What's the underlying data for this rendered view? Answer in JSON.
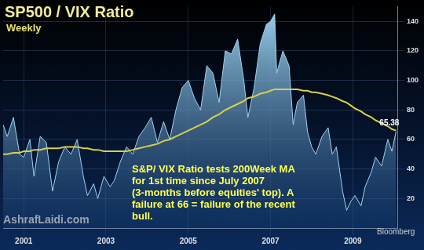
{
  "chart_data": {
    "type": "line",
    "title": "SP500 / VIX Ratio",
    "subtitle": "Weekly",
    "watermark": "AshrafLaidi.com",
    "source": "Bloomberg",
    "annotations": [
      {
        "lines": [
          "S&P/ VIX Ratio tests 200Week MA",
          "for 1st time since July 2007",
          "(3-months before equities' top). A",
          "failure at 66 = failure of the recent",
          "bull."
        ]
      },
      {
        "text": "65.38",
        "x": 2010.05,
        "y": 65.38
      }
    ],
    "x": [
      2000.5,
      2000.6,
      2000.75,
      2000.9,
      2001.0,
      2001.15,
      2001.25,
      2001.4,
      2001.55,
      2001.7,
      2001.85,
      2002.0,
      2002.15,
      2002.3,
      2002.45,
      2002.55,
      2002.7,
      2002.8,
      2002.95,
      2003.1,
      2003.2,
      2003.35,
      2003.5,
      2003.65,
      2003.8,
      2003.95,
      2004.1,
      2004.25,
      2004.4,
      2004.55,
      2004.7,
      2004.85,
      2005.0,
      2005.15,
      2005.3,
      2005.45,
      2005.6,
      2005.75,
      2005.9,
      2006.05,
      2006.2,
      2006.35,
      2006.45,
      2006.6,
      2006.75,
      2006.9,
      2007.0,
      2007.1,
      2007.15,
      2007.3,
      2007.45,
      2007.55,
      2007.65,
      2007.8,
      2007.9,
      2008.0,
      2008.1,
      2008.25,
      2008.4,
      2008.5,
      2008.6,
      2008.75,
      2008.85,
      2008.95,
      2009.05,
      2009.2,
      2009.3,
      2009.45,
      2009.55,
      2009.7,
      2009.85,
      2009.95,
      2010.05
    ],
    "series": [
      {
        "name": "SP500 / VIX Ratio",
        "type": "area",
        "color": "#9fd4f0",
        "values": [
          70,
          62,
          75,
          50,
          48,
          60,
          35,
          62,
          58,
          25,
          45,
          55,
          50,
          60,
          35,
          22,
          30,
          20,
          35,
          28,
          32,
          45,
          55,
          50,
          62,
          68,
          75,
          58,
          72,
          60,
          80,
          95,
          100,
          88,
          80,
          110,
          105,
          85,
          120,
          118,
          128,
          100,
          75,
          95,
          125,
          138,
          140,
          145,
          105,
          120,
          110,
          70,
          85,
          90,
          65,
          55,
          50,
          62,
          68,
          50,
          55,
          25,
          12,
          18,
          22,
          15,
          28,
          38,
          48,
          42,
          60,
          52,
          65.38
        ]
      },
      {
        "name": "200Week MA",
        "type": "line",
        "color": "#d8d04a",
        "values": [
          50,
          50,
          51,
          51,
          52,
          52,
          53,
          53,
          54,
          54,
          54,
          55,
          55,
          55,
          54,
          54,
          53,
          53,
          52,
          52,
          52,
          52,
          52,
          53,
          54,
          55,
          56,
          57,
          59,
          60,
          62,
          64,
          66,
          68,
          70,
          72,
          75,
          77,
          80,
          82,
          84,
          86,
          88,
          89,
          91,
          92,
          93,
          94,
          94,
          94,
          94,
          94,
          94,
          93,
          93,
          92,
          92,
          91,
          90,
          89,
          88,
          86,
          85,
          83,
          81,
          79,
          77,
          75,
          73,
          71,
          69,
          67,
          66
        ]
      }
    ],
    "xlim": [
      2000.5,
      2010.1
    ],
    "xticks": [
      2001,
      2003,
      2005,
      2007,
      2009
    ],
    "ylim": [
      0,
      150
    ],
    "yticks": [
      20,
      40,
      60,
      80,
      100,
      120,
      140
    ],
    "grid": true
  }
}
